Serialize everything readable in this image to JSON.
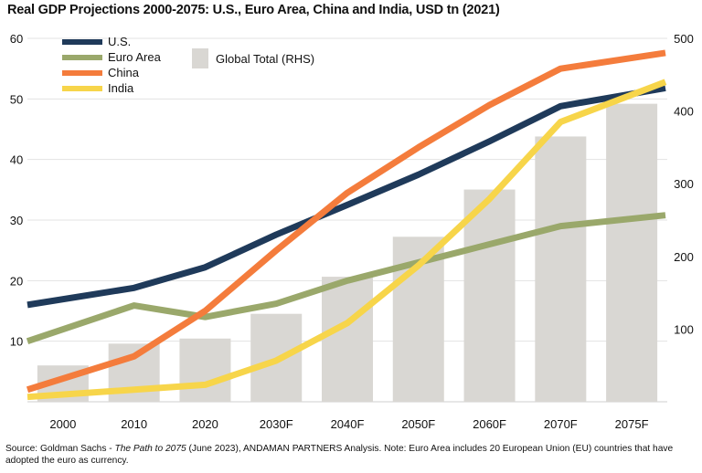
{
  "title": "Real GDP Projections 2000-2075: U.S., Euro Area, China and India, USD tn (2021)",
  "source": {
    "prefix": "Source: Goldman Sachs - ",
    "italic": "The Path to 2075",
    "suffix": " (June 2023), ANDAMAN PARTNERS Analysis. Note: Euro Area includes 20 European Union (EU) countries that have adopted the euro as currency."
  },
  "chart_data": {
    "type": "line",
    "categories": [
      "2000",
      "2010",
      "2020",
      "2030F",
      "2040F",
      "2050F",
      "2060F",
      "2070F",
      "2075F"
    ],
    "ylim": [
      0,
      60
    ],
    "yticks": [
      10,
      20,
      30,
      40,
      50,
      60
    ],
    "y2lim": [
      0,
      500
    ],
    "y2ticks": [
      100,
      200,
      300,
      400,
      500
    ],
    "bars": {
      "name": "Global Total (RHS)",
      "color": "#d9d7d3",
      "values": [
        50,
        80,
        87,
        121,
        172,
        227,
        292,
        365,
        410
      ]
    },
    "series": [
      {
        "name": "U.S.",
        "color": "#1f3a5a",
        "values": [
          16,
          18.8,
          22.2,
          27.6,
          32.5,
          37.5,
          43,
          48.8,
          51.8
        ]
      },
      {
        "name": "Euro Area",
        "color": "#9aa86b",
        "values": [
          10,
          15.9,
          14,
          16.2,
          20,
          23,
          26,
          29,
          30.8
        ]
      },
      {
        "name": "China",
        "color": "#f47c3c",
        "values": [
          2,
          7.5,
          15,
          25,
          34.5,
          42,
          49,
          55,
          57.6
        ]
      },
      {
        "name": "India",
        "color": "#f7d54a",
        "values": [
          0.8,
          2,
          2.8,
          6.8,
          13,
          22.5,
          33.5,
          46.2,
          52.8
        ]
      }
    ],
    "legend_position": "top-left",
    "grid": "horizontal"
  }
}
